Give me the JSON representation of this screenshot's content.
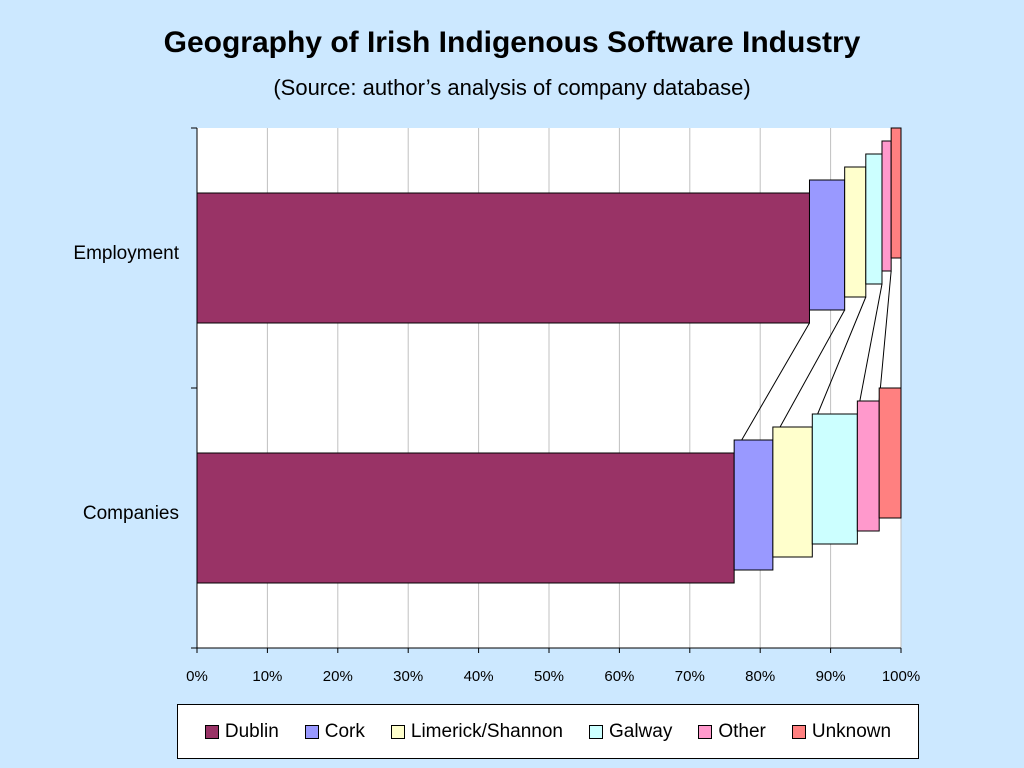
{
  "chart_data": {
    "type": "bar",
    "stacked": true,
    "orientation": "horizontal",
    "percent_stacked": true,
    "title": "Geography of Irish Indigenous Software Industry",
    "subtitle": "(Source: author’s analysis of company database)",
    "categories": [
      "Employment",
      "Companies"
    ],
    "series": [
      {
        "name": "Dublin",
        "color": "#993366",
        "values": [
          87,
          76.3
        ]
      },
      {
        "name": "Cork",
        "color": "#9999ff",
        "values": [
          5,
          5.5
        ]
      },
      {
        "name": "Limerick/Shannon",
        "color": "#ffffcc",
        "values": [
          3,
          5.6
        ]
      },
      {
        "name": "Galway",
        "color": "#ccffff",
        "values": [
          2.3,
          6.4
        ]
      },
      {
        "name": "Other",
        "color": "#ff99cc",
        "values": [
          1.3,
          3.1
        ]
      },
      {
        "name": "Unknown",
        "color": "#ff8080",
        "values": [
          1.4,
          3.1
        ]
      }
    ],
    "xlim": [
      0,
      100
    ],
    "x_ticks": [
      "0%",
      "10%",
      "20%",
      "30%",
      "40%",
      "50%",
      "60%",
      "70%",
      "80%",
      "90%",
      "100%"
    ],
    "grid": true,
    "series_lines": true,
    "legend_position": "bottom"
  }
}
